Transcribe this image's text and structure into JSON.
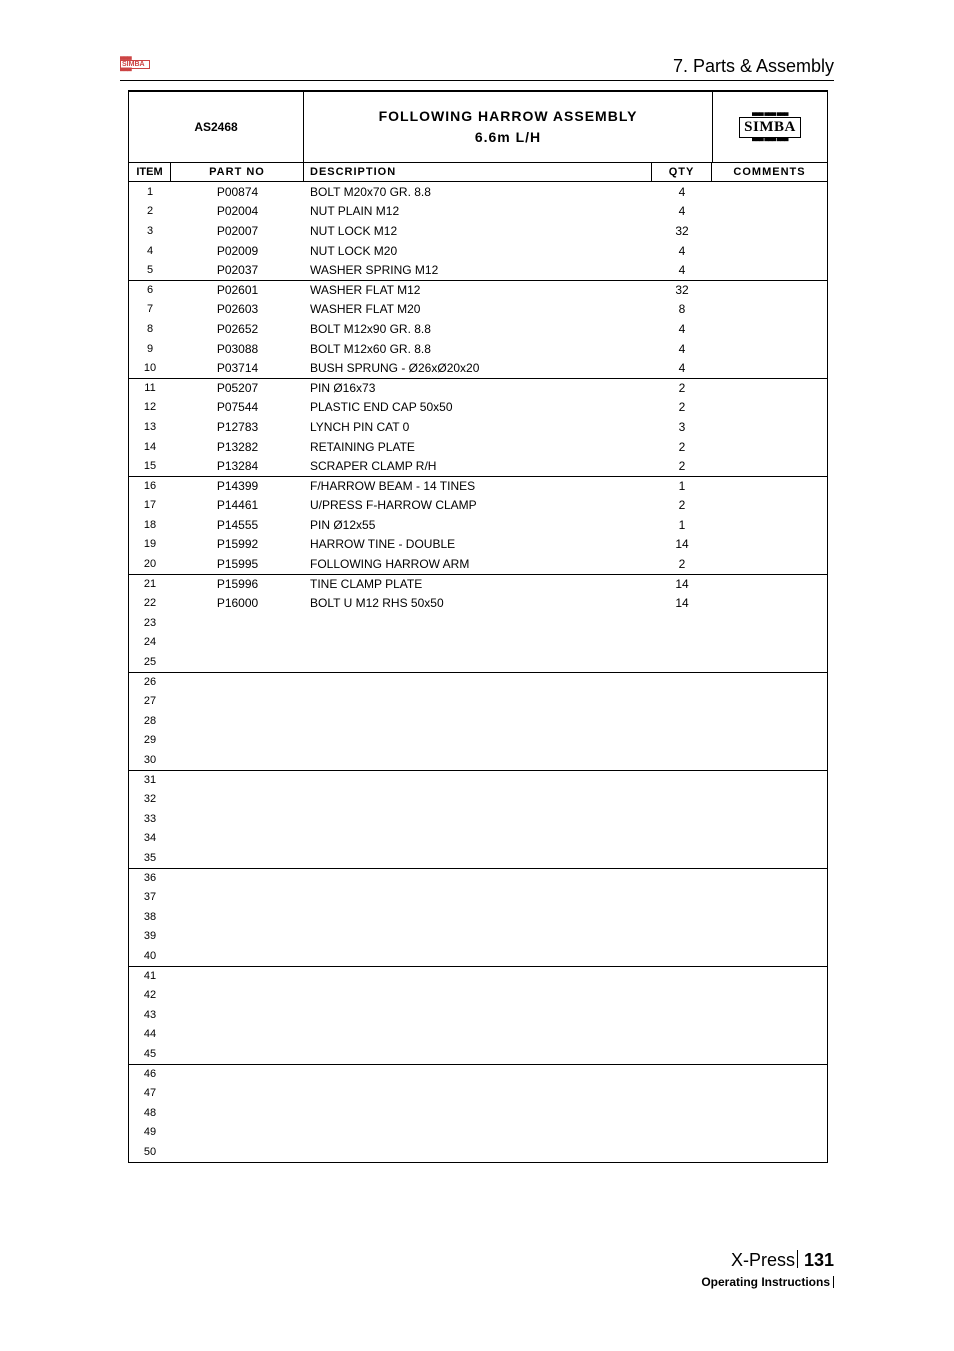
{
  "header": {
    "section": "7. Parts & Assembly"
  },
  "table": {
    "assembly_code": "AS2468",
    "title_line1": "FOLLOWING HARROW ASSEMBLY",
    "title_line2": "6.6m L/H",
    "logo_text": "SIMBA",
    "columns": {
      "item": "ITEM",
      "part": "PART NO",
      "desc": "DESCRIPTION",
      "qty": "QTY",
      "comm": "COMMENTS"
    },
    "separator_rows": [
      6,
      11,
      16,
      21,
      26,
      31,
      36,
      41,
      46
    ],
    "rows": [
      {
        "i": "1",
        "p": "P00874",
        "d": "BOLT M20x70 GR. 8.8",
        "q": "4",
        "c": ""
      },
      {
        "i": "2",
        "p": "P02004",
        "d": "NUT PLAIN M12",
        "q": "4",
        "c": ""
      },
      {
        "i": "3",
        "p": "P02007",
        "d": "NUT LOCK M12",
        "q": "32",
        "c": ""
      },
      {
        "i": "4",
        "p": "P02009",
        "d": "NUT LOCK M20",
        "q": "4",
        "c": ""
      },
      {
        "i": "5",
        "p": "P02037",
        "d": "WASHER SPRING M12",
        "q": "4",
        "c": ""
      },
      {
        "i": "6",
        "p": "P02601",
        "d": "WASHER FLAT M12",
        "q": "32",
        "c": ""
      },
      {
        "i": "7",
        "p": "P02603",
        "d": "WASHER FLAT M20",
        "q": "8",
        "c": ""
      },
      {
        "i": "8",
        "p": "P02652",
        "d": "BOLT M12x90 GR. 8.8",
        "q": "4",
        "c": ""
      },
      {
        "i": "9",
        "p": "P03088",
        "d": "BOLT M12x60 GR. 8.8",
        "q": "4",
        "c": ""
      },
      {
        "i": "10",
        "p": "P03714",
        "d": "BUSH SPRUNG - Ø26xØ20x20",
        "q": "4",
        "c": ""
      },
      {
        "i": "11",
        "p": "P05207",
        "d": "PIN Ø16x73",
        "q": "2",
        "c": ""
      },
      {
        "i": "12",
        "p": "P07544",
        "d": "PLASTIC END CAP 50x50",
        "q": "2",
        "c": ""
      },
      {
        "i": "13",
        "p": "P12783",
        "d": "LYNCH PIN CAT 0",
        "q": "3",
        "c": ""
      },
      {
        "i": "14",
        "p": "P13282",
        "d": "RETAINING PLATE",
        "q": "2",
        "c": ""
      },
      {
        "i": "15",
        "p": "P13284",
        "d": "SCRAPER CLAMP R/H",
        "q": "2",
        "c": ""
      },
      {
        "i": "16",
        "p": "P14399",
        "d": "F/HARROW BEAM - 14 TINES",
        "q": "1",
        "c": ""
      },
      {
        "i": "17",
        "p": "P14461",
        "d": "U/PRESS F-HARROW CLAMP",
        "q": "2",
        "c": ""
      },
      {
        "i": "18",
        "p": "P14555",
        "d": "PIN Ø12x55",
        "q": "1",
        "c": ""
      },
      {
        "i": "19",
        "p": "P15992",
        "d": "HARROW TINE - DOUBLE",
        "q": "14",
        "c": ""
      },
      {
        "i": "20",
        "p": "P15995",
        "d": "FOLLOWING HARROW ARM",
        "q": "2",
        "c": ""
      },
      {
        "i": "21",
        "p": "P15996",
        "d": "TINE CLAMP PLATE",
        "q": "14",
        "c": ""
      },
      {
        "i": "22",
        "p": "P16000",
        "d": "BOLT U M12 RHS 50x50",
        "q": "14",
        "c": ""
      },
      {
        "i": "23",
        "p": "",
        "d": "",
        "q": "",
        "c": ""
      },
      {
        "i": "24",
        "p": "",
        "d": "",
        "q": "",
        "c": ""
      },
      {
        "i": "25",
        "p": "",
        "d": "",
        "q": "",
        "c": ""
      },
      {
        "i": "26",
        "p": "",
        "d": "",
        "q": "",
        "c": ""
      },
      {
        "i": "27",
        "p": "",
        "d": "",
        "q": "",
        "c": ""
      },
      {
        "i": "28",
        "p": "",
        "d": "",
        "q": "",
        "c": ""
      },
      {
        "i": "29",
        "p": "",
        "d": "",
        "q": "",
        "c": ""
      },
      {
        "i": "30",
        "p": "",
        "d": "",
        "q": "",
        "c": ""
      },
      {
        "i": "31",
        "p": "",
        "d": "",
        "q": "",
        "c": ""
      },
      {
        "i": "32",
        "p": "",
        "d": "",
        "q": "",
        "c": ""
      },
      {
        "i": "33",
        "p": "",
        "d": "",
        "q": "",
        "c": ""
      },
      {
        "i": "34",
        "p": "",
        "d": "",
        "q": "",
        "c": ""
      },
      {
        "i": "35",
        "p": "",
        "d": "",
        "q": "",
        "c": ""
      },
      {
        "i": "36",
        "p": "",
        "d": "",
        "q": "",
        "c": ""
      },
      {
        "i": "37",
        "p": "",
        "d": "",
        "q": "",
        "c": ""
      },
      {
        "i": "38",
        "p": "",
        "d": "",
        "q": "",
        "c": ""
      },
      {
        "i": "39",
        "p": "",
        "d": "",
        "q": "",
        "c": ""
      },
      {
        "i": "40",
        "p": "",
        "d": "",
        "q": "",
        "c": ""
      },
      {
        "i": "41",
        "p": "",
        "d": "",
        "q": "",
        "c": ""
      },
      {
        "i": "42",
        "p": "",
        "d": "",
        "q": "",
        "c": ""
      },
      {
        "i": "43",
        "p": "",
        "d": "",
        "q": "",
        "c": ""
      },
      {
        "i": "44",
        "p": "",
        "d": "",
        "q": "",
        "c": ""
      },
      {
        "i": "45",
        "p": "",
        "d": "",
        "q": "",
        "c": ""
      },
      {
        "i": "46",
        "p": "",
        "d": "",
        "q": "",
        "c": ""
      },
      {
        "i": "47",
        "p": "",
        "d": "",
        "q": "",
        "c": ""
      },
      {
        "i": "48",
        "p": "",
        "d": "",
        "q": "",
        "c": ""
      },
      {
        "i": "49",
        "p": "",
        "d": "",
        "q": "",
        "c": ""
      },
      {
        "i": "50",
        "p": "",
        "d": "",
        "q": "",
        "c": ""
      }
    ]
  },
  "footer": {
    "product": "X-Press",
    "page": "131",
    "subtitle": "Operating Instructions"
  }
}
